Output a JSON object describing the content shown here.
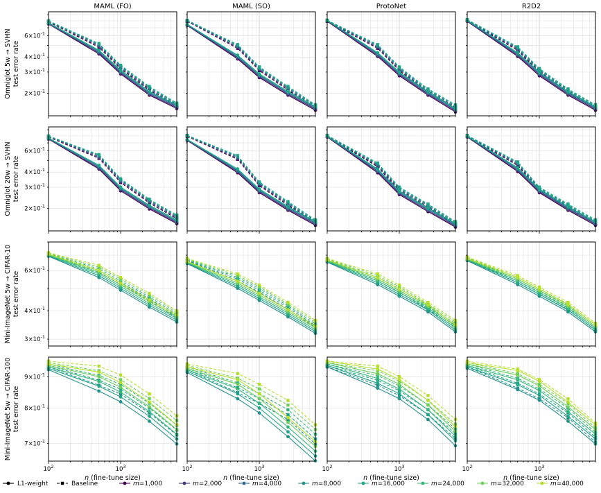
{
  "colors": {
    "m=1,000": "#440154",
    "m=2,000": "#443983",
    "m=4,000": "#31688e",
    "m=8,000": "#21918c",
    "m=16,000": "#20a486",
    "m=24,000": "#35b779",
    "m=32,000": "#6ece58",
    "m=40,000": "#b5de2b"
  },
  "chart_data": {
    "type": "line",
    "grid": true,
    "xscale": "log",
    "yscale": "log",
    "xlim": [
      100,
      6000
    ],
    "xlabel": "n (fine-tune size)",
    "x": [
      100,
      500,
      1000,
      2500,
      6000
    ],
    "x_ticklabels": [
      "10^2",
      "10^3"
    ],
    "columns": [
      "MAML (FO)",
      "MAML (SO)",
      "ProtoNet",
      "R2D2"
    ],
    "rows": [
      {
        "ylabel_1": "Omniglot 5w → SVHN",
        "ylabel_2": "test error rate",
        "ylim": [
          0.13,
          0.95
        ],
        "yticks": [
          {
            "v": 0.6,
            "t": "6×10^-1"
          },
          {
            "v": 0.4,
            "t": "4×10^-1"
          },
          {
            "v": 0.3,
            "t": "3×10^-1"
          },
          {
            "v": 0.2,
            "t": "2×10^-1"
          }
        ],
        "series": [
          "m=1,000",
          "m=2,000",
          "m=4,000",
          "m=8,000",
          "m=16,000"
        ],
        "panels": [
          {
            "l1": [
              0.76,
              0.44,
              0.3,
              0.2,
              0.155
            ],
            "base": [
              0.79,
              0.5,
              0.33,
              0.22,
              0.16
            ]
          },
          {
            "l1": [
              0.74,
              0.4,
              0.28,
              0.2,
              0.15
            ],
            "base": [
              0.8,
              0.49,
              0.32,
              0.22,
              0.155
            ]
          },
          {
            "l1": [
              0.8,
              0.42,
              0.29,
              0.2,
              0.145
            ],
            "base": [
              0.8,
              0.49,
              0.32,
              0.21,
              0.155
            ]
          },
          {
            "l1": [
              0.8,
              0.42,
              0.29,
              0.2,
              0.15
            ],
            "base": [
              0.81,
              0.47,
              0.31,
              0.21,
              0.155
            ]
          }
        ]
      },
      {
        "ylabel_1": "Omniglot 20w → SVHN",
        "ylabel_2": "test error rate",
        "ylim": [
          0.13,
          0.95
        ],
        "yticks": [
          {
            "v": 0.6,
            "t": "6×10^-1"
          },
          {
            "v": 0.4,
            "t": "4×10^-1"
          },
          {
            "v": 0.3,
            "t": "3×10^-1"
          },
          {
            "v": 0.2,
            "t": "2×10^-1"
          }
        ],
        "series": [
          "m=1,000",
          "m=2,000",
          "m=4,000",
          "m=8,000",
          "m=16,000"
        ],
        "panels": [
          {
            "l1": [
              0.76,
              0.44,
              0.29,
              0.205,
              0.155
            ],
            "base": [
              0.79,
              0.54,
              0.34,
              0.23,
              0.17
            ]
          },
          {
            "l1": [
              0.74,
              0.41,
              0.28,
              0.2,
              0.15
            ],
            "base": [
              0.8,
              0.53,
              0.32,
              0.22,
              0.155
            ]
          },
          {
            "l1": [
              0.79,
              0.41,
              0.27,
              0.195,
              0.145
            ],
            "base": [
              0.8,
              0.46,
              0.29,
              0.21,
              0.15
            ]
          },
          {
            "l1": [
              0.79,
              0.42,
              0.28,
              0.2,
              0.15
            ],
            "base": [
              0.8,
              0.47,
              0.29,
              0.21,
              0.155
            ]
          }
        ]
      },
      {
        "ylabel_1": "Mini-ImageNet 5w → CIFAR-10",
        "ylabel_2": "test error rate",
        "ylim": [
          0.28,
          0.8
        ],
        "yticks": [
          {
            "v": 0.6,
            "t": "6×10^-1"
          },
          {
            "v": 0.4,
            "t": "4×10^-1"
          },
          {
            "v": 0.3,
            "t": "3×10^-1"
          }
        ],
        "series": [
          "m=8,000",
          "m=16,000",
          "m=24,000",
          "m=32,000",
          "m=40,000"
        ],
        "panels": [
          {
            "l1": [
              0.7,
              0.58,
              0.51,
              0.43,
              0.37
            ],
            "base": [
              0.71,
              0.61,
              0.54,
              0.46,
              0.385
            ]
          },
          {
            "l1": [
              0.65,
              0.52,
              0.46,
              0.39,
              0.33
            ],
            "base": [
              0.67,
              0.56,
              0.5,
              0.42,
              0.35
            ]
          },
          {
            "l1": [
              0.66,
              0.54,
              0.48,
              0.41,
              0.335
            ],
            "base": [
              0.67,
              0.56,
              0.5,
              0.42,
              0.35
            ]
          },
          {
            "l1": [
              0.67,
              0.54,
              0.48,
              0.41,
              0.335
            ],
            "base": [
              0.68,
              0.55,
              0.49,
              0.42,
              0.34
            ]
          }
        ]
      },
      {
        "ylabel_1": "Mini-ImageNet 5w → CIFAR-100",
        "ylabel_2": "test error rate",
        "ylim": [
          0.655,
          0.97
        ],
        "yticks": [
          {
            "v": 0.9,
            "t": "9×10^-1"
          },
          {
            "v": 0.8,
            "t": "8×10^-1"
          },
          {
            "v": 0.7,
            "t": "7×10^-1"
          }
        ],
        "series": [
          "m=8,000",
          "m=16,000",
          "m=24,000",
          "m=32,000",
          "m=40,000"
        ],
        "panels": [
          {
            "l1": [
              0.935,
              0.885,
              0.85,
              0.79,
              0.725
            ],
            "base": [
              0.945,
              0.905,
              0.875,
              0.815,
              0.75
            ]
          },
          {
            "l1": [
              0.925,
              0.86,
              0.815,
              0.745,
              0.68
            ],
            "base": [
              0.935,
              0.88,
              0.845,
              0.795,
              0.725
            ]
          },
          {
            "l1": [
              0.945,
              0.895,
              0.86,
              0.795,
              0.72
            ],
            "base": [
              0.945,
              0.905,
              0.87,
              0.81,
              0.74
            ]
          },
          {
            "l1": [
              0.94,
              0.89,
              0.855,
              0.79,
              0.725
            ],
            "base": [
              0.945,
              0.895,
              0.86,
              0.8,
              0.73
            ]
          }
        ]
      }
    ],
    "legend": {
      "placement": "bottom",
      "l1_label": "L1-weight",
      "baseline_label": "Baseline",
      "entries": [
        "m=1,000",
        "m=2,000",
        "m=4,000",
        "m=8,000",
        "m=16,000",
        "m=24,000",
        "m=32,000",
        "m=40,000"
      ]
    }
  }
}
